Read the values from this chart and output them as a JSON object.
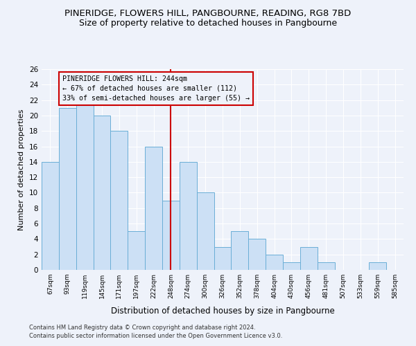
{
  "title1": "PINERIDGE, FLOWERS HILL, PANGBOURNE, READING, RG8 7BD",
  "title2": "Size of property relative to detached houses in Pangbourne",
  "xlabel": "Distribution of detached houses by size in Pangbourne",
  "ylabel": "Number of detached properties",
  "footer1": "Contains HM Land Registry data © Crown copyright and database right 2024.",
  "footer2": "Contains public sector information licensed under the Open Government Licence v3.0.",
  "categories": [
    "67sqm",
    "93sqm",
    "119sqm",
    "145sqm",
    "171sqm",
    "197sqm",
    "222sqm",
    "248sqm",
    "274sqm",
    "300sqm",
    "326sqm",
    "352sqm",
    "378sqm",
    "404sqm",
    "430sqm",
    "456sqm",
    "481sqm",
    "507sqm",
    "533sqm",
    "559sqm",
    "585sqm"
  ],
  "values": [
    14,
    21,
    22,
    20,
    18,
    5,
    16,
    9,
    14,
    10,
    3,
    5,
    4,
    2,
    1,
    3,
    1,
    0,
    0,
    1,
    0
  ],
  "bar_color": "#cce0f5",
  "bar_edge_color": "#6aaed6",
  "highlight_index": 7,
  "highlight_line_color": "#cc0000",
  "annotation_title": "PINERIDGE FLOWERS HILL: 244sqm",
  "annotation_line1": "← 67% of detached houses are smaller (112)",
  "annotation_line2": "33% of semi-detached houses are larger (55) →",
  "ylim": [
    0,
    26
  ],
  "yticks": [
    0,
    2,
    4,
    6,
    8,
    10,
    12,
    14,
    16,
    18,
    20,
    22,
    24,
    26
  ],
  "bg_color": "#eef2fa",
  "grid_color": "#ffffff",
  "title1_fontsize": 9.5,
  "title2_fontsize": 9.0
}
